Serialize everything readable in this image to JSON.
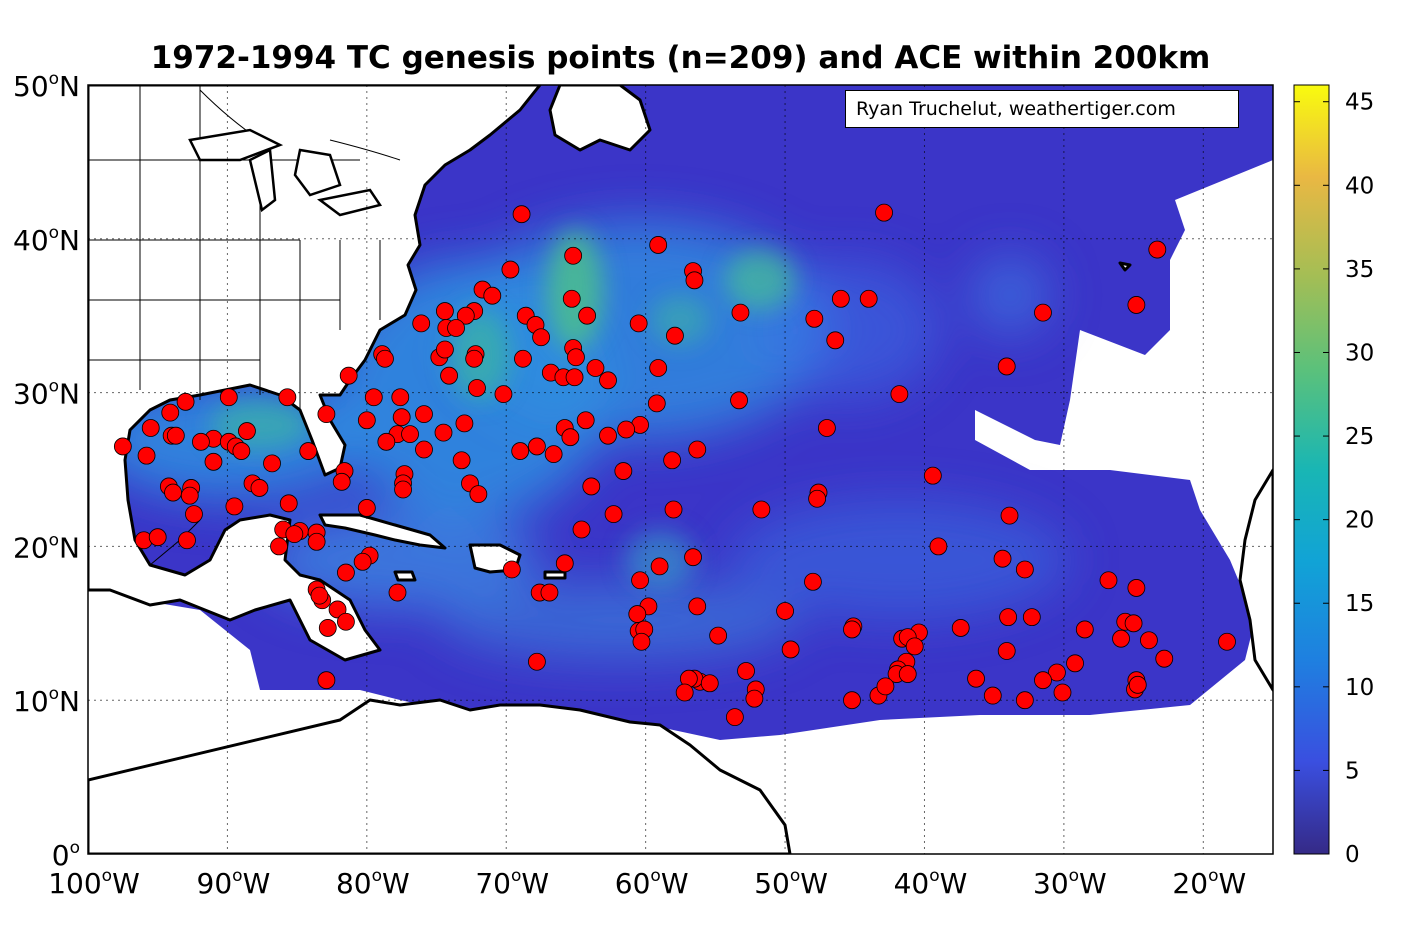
{
  "title": "1972-1994 TC genesis points (n=209) and ACE within 200km",
  "credit": "Ryan Truchelut, weathertiger.com",
  "map": {
    "lon_range": [
      -100,
      -15
    ],
    "lat_range": [
      0,
      50
    ],
    "x_ticks": [
      {
        "lon": -100,
        "deg": "100",
        "dir": "W"
      },
      {
        "lon": -90,
        "deg": "90",
        "dir": "W"
      },
      {
        "lon": -80,
        "deg": "80",
        "dir": "W"
      },
      {
        "lon": -70,
        "deg": "70",
        "dir": "W"
      },
      {
        "lon": -60,
        "deg": "60",
        "dir": "W"
      },
      {
        "lon": -50,
        "deg": "50",
        "dir": "W"
      },
      {
        "lon": -40,
        "deg": "40",
        "dir": "W"
      },
      {
        "lon": -30,
        "deg": "30",
        "dir": "W"
      },
      {
        "lon": -20,
        "deg": "20",
        "dir": "W"
      }
    ],
    "y_ticks": [
      {
        "lat": 0,
        "deg": "0",
        "dir": ""
      },
      {
        "lat": 10,
        "deg": "10",
        "dir": "N"
      },
      {
        "lat": 20,
        "deg": "20",
        "dir": "N"
      },
      {
        "lat": 30,
        "deg": "30",
        "dir": "N"
      },
      {
        "lat": 40,
        "deg": "40",
        "dir": "N"
      },
      {
        "lat": 50,
        "deg": "50",
        "dir": "N"
      }
    ],
    "grid": true,
    "colors": {
      "ocean_low": "#3b35c8",
      "ocean_mid": "#2f8fe0",
      "ocean_high": "#3cbf8a",
      "land": "#ffffff",
      "coast": "#000000",
      "marker": "#ff0000"
    }
  },
  "colorbar": {
    "min": 0,
    "max": 46,
    "ticks": [
      "0",
      "5",
      "10",
      "15",
      "20",
      "25",
      "30",
      "35",
      "40",
      "45"
    ],
    "colormap": "parula"
  },
  "genesis_points": [
    [
      -68.9,
      41.6
    ],
    [
      -42.9,
      41.7
    ],
    [
      -59.1,
      39.6
    ],
    [
      -23.3,
      39.3
    ],
    [
      -65.2,
      38.9
    ],
    [
      -69.7,
      38.0
    ],
    [
      -56.6,
      37.9
    ],
    [
      -56.5,
      37.3
    ],
    [
      -71.7,
      36.7
    ],
    [
      -71.0,
      36.3
    ],
    [
      -65.3,
      36.1
    ],
    [
      -46.0,
      36.1
    ],
    [
      -44.0,
      36.1
    ],
    [
      -24.8,
      35.7
    ],
    [
      -74.4,
      35.3
    ],
    [
      -72.3,
      35.3
    ],
    [
      -72.9,
      35.0
    ],
    [
      -68.6,
      35.0
    ],
    [
      -64.2,
      35.0
    ],
    [
      -53.2,
      35.2
    ],
    [
      -47.9,
      34.8
    ],
    [
      -31.5,
      35.2
    ],
    [
      -76.1,
      34.5
    ],
    [
      -60.5,
      34.5
    ],
    [
      -74.3,
      34.2
    ],
    [
      -73.6,
      34.2
    ],
    [
      -67.9,
      34.4
    ],
    [
      -67.5,
      33.6
    ],
    [
      -57.9,
      33.7
    ],
    [
      -46.4,
      33.4
    ],
    [
      -74.8,
      32.3
    ],
    [
      -74.4,
      32.8
    ],
    [
      -72.2,
      32.5
    ],
    [
      -72.3,
      32.2
    ],
    [
      -65.2,
      32.9
    ],
    [
      -65.0,
      32.3
    ],
    [
      -78.9,
      32.5
    ],
    [
      -78.7,
      32.2
    ],
    [
      -68.8,
      32.2
    ],
    [
      -81.3,
      31.1
    ],
    [
      -74.1,
      31.1
    ],
    [
      -66.8,
      31.3
    ],
    [
      -65.9,
      31.0
    ],
    [
      -65.1,
      31.0
    ],
    [
      -63.6,
      31.6
    ],
    [
      -62.7,
      30.8
    ],
    [
      -59.1,
      31.6
    ],
    [
      -34.1,
      31.7
    ],
    [
      -72.1,
      30.3
    ],
    [
      -70.2,
      29.9
    ],
    [
      -79.5,
      29.7
    ],
    [
      -77.6,
      29.7
    ],
    [
      -85.7,
      29.7
    ],
    [
      -89.9,
      29.7
    ],
    [
      -41.8,
      29.9
    ],
    [
      -53.3,
      29.5
    ],
    [
      -59.2,
      29.3
    ],
    [
      -93.0,
      29.4
    ],
    [
      -94.1,
      28.7
    ],
    [
      -82.9,
      28.6
    ],
    [
      -77.5,
      28.4
    ],
    [
      -80.0,
      28.2
    ],
    [
      -75.9,
      28.6
    ],
    [
      -73.0,
      28.0
    ],
    [
      -64.3,
      28.2
    ],
    [
      -60.4,
      27.9
    ],
    [
      -61.4,
      27.6
    ],
    [
      -62.7,
      27.2
    ],
    [
      -65.8,
      27.7
    ],
    [
      -65.4,
      27.1
    ],
    [
      -47.0,
      27.7
    ],
    [
      -95.5,
      27.7
    ],
    [
      -94.0,
      27.2
    ],
    [
      -93.7,
      27.2
    ],
    [
      -91.0,
      27.0
    ],
    [
      -91.9,
      26.8
    ],
    [
      -89.9,
      26.8
    ],
    [
      -89.4,
      26.5
    ],
    [
      -88.6,
      27.5
    ],
    [
      -89.0,
      26.2
    ],
    [
      -97.5,
      26.5
    ],
    [
      -77.8,
      27.3
    ],
    [
      -76.9,
      27.3
    ],
    [
      -74.5,
      27.4
    ],
    [
      -75.9,
      26.3
    ],
    [
      -78.6,
      26.8
    ],
    [
      -69.0,
      26.2
    ],
    [
      -67.8,
      26.5
    ],
    [
      -66.6,
      26.0
    ],
    [
      -56.3,
      26.3
    ],
    [
      -58.1,
      25.6
    ],
    [
      -73.2,
      25.6
    ],
    [
      -84.2,
      26.2
    ],
    [
      -95.8,
      25.9
    ],
    [
      -91.0,
      25.5
    ],
    [
      -86.8,
      25.4
    ],
    [
      -81.6,
      24.9
    ],
    [
      -61.6,
      24.9
    ],
    [
      -77.3,
      24.7
    ],
    [
      -77.4,
      24.1
    ],
    [
      -77.4,
      23.7
    ],
    [
      -72.6,
      24.1
    ],
    [
      -72.0,
      23.4
    ],
    [
      -81.8,
      24.2
    ],
    [
      -94.2,
      23.9
    ],
    [
      -93.9,
      23.5
    ],
    [
      -92.6,
      23.8
    ],
    [
      -92.7,
      23.3
    ],
    [
      -88.2,
      24.1
    ],
    [
      -87.7,
      23.8
    ],
    [
      -85.6,
      22.8
    ],
    [
      -89.5,
      22.6
    ],
    [
      -92.4,
      22.1
    ],
    [
      -63.9,
      23.9
    ],
    [
      -58.0,
      22.4
    ],
    [
      -62.3,
      22.1
    ],
    [
      -51.7,
      22.4
    ],
    [
      -47.6,
      23.5
    ],
    [
      -47.7,
      23.1
    ],
    [
      -39.4,
      24.6
    ],
    [
      -33.9,
      22.0
    ],
    [
      -80.0,
      22.5
    ],
    [
      -64.6,
      21.1
    ],
    [
      -86.0,
      21.1
    ],
    [
      -84.8,
      21.0
    ],
    [
      -83.6,
      20.9
    ],
    [
      -83.6,
      20.3
    ],
    [
      -86.3,
      20.0
    ],
    [
      -85.2,
      20.8
    ],
    [
      -96.0,
      20.4
    ],
    [
      -95.0,
      20.6
    ],
    [
      -92.9,
      20.4
    ],
    [
      -79.8,
      19.4
    ],
    [
      -80.3,
      19.0
    ],
    [
      -81.5,
      18.3
    ],
    [
      -56.6,
      19.3
    ],
    [
      -65.8,
      18.9
    ],
    [
      -59.0,
      18.7
    ],
    [
      -60.4,
      17.8
    ],
    [
      -69.6,
      18.5
    ],
    [
      -39.0,
      20.0
    ],
    [
      -34.4,
      19.2
    ],
    [
      -32.8,
      18.5
    ],
    [
      -26.8,
      17.8
    ],
    [
      -24.8,
      17.3
    ],
    [
      -83.6,
      17.2
    ],
    [
      -83.2,
      16.5
    ],
    [
      -83.4,
      16.8
    ],
    [
      -77.8,
      17.0
    ],
    [
      -67.6,
      17.0
    ],
    [
      -66.9,
      17.0
    ],
    [
      -48.0,
      17.7
    ],
    [
      -59.8,
      16.1
    ],
    [
      -56.3,
      16.1
    ],
    [
      -60.6,
      15.6
    ],
    [
      -50.0,
      15.8
    ],
    [
      -82.1,
      15.9
    ],
    [
      -81.5,
      15.1
    ],
    [
      -82.8,
      14.7
    ],
    [
      -60.5,
      14.5
    ],
    [
      -60.1,
      14.6
    ],
    [
      -60.3,
      13.8
    ],
    [
      -54.8,
      14.2
    ],
    [
      -45.1,
      14.8
    ],
    [
      -45.2,
      14.6
    ],
    [
      -40.4,
      14.4
    ],
    [
      -41.6,
      14.0
    ],
    [
      -41.2,
      14.1
    ],
    [
      -40.7,
      13.5
    ],
    [
      -37.4,
      14.7
    ],
    [
      -34.0,
      15.4
    ],
    [
      -32.3,
      15.4
    ],
    [
      -28.5,
      14.6
    ],
    [
      -25.6,
      15.1
    ],
    [
      -25.0,
      15.0
    ],
    [
      -25.9,
      14.0
    ],
    [
      -23.9,
      13.9
    ],
    [
      -22.8,
      12.7
    ],
    [
      -18.3,
      13.8
    ],
    [
      -34.1,
      13.2
    ],
    [
      -49.6,
      13.3
    ],
    [
      -67.8,
      12.5
    ],
    [
      -41.3,
      12.5
    ],
    [
      -41.9,
      12.0
    ],
    [
      -42.0,
      11.7
    ],
    [
      -41.2,
      11.7
    ],
    [
      -29.2,
      12.4
    ],
    [
      -30.5,
      11.8
    ],
    [
      -31.5,
      11.3
    ],
    [
      -36.3,
      11.4
    ],
    [
      -56.1,
      11.2
    ],
    [
      -56.5,
      11.4
    ],
    [
      -56.9,
      11.4
    ],
    [
      -55.4,
      11.1
    ],
    [
      -52.8,
      11.9
    ],
    [
      -52.1,
      10.7
    ],
    [
      -52.2,
      10.1
    ],
    [
      -57.2,
      10.5
    ],
    [
      -53.6,
      8.9
    ],
    [
      -45.2,
      10.0
    ],
    [
      -43.3,
      10.3
    ],
    [
      -42.8,
      10.9
    ],
    [
      -35.1,
      10.3
    ],
    [
      -32.8,
      10.0
    ],
    [
      -30.1,
      10.5
    ],
    [
      -24.8,
      11.3
    ],
    [
      -24.9,
      10.7
    ],
    [
      -24.7,
      11.0
    ],
    [
      -82.9,
      11.3
    ]
  ]
}
